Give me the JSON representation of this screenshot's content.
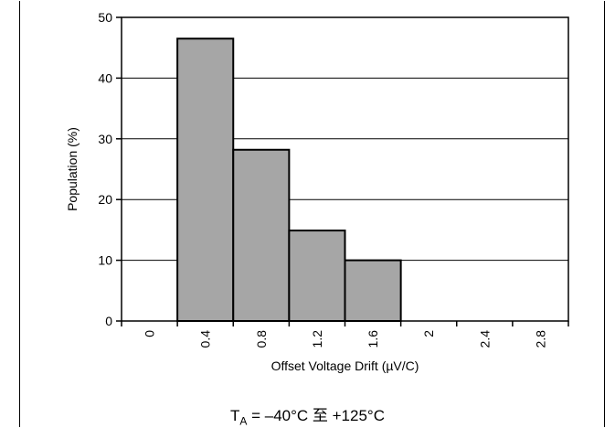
{
  "chart_data": {
    "type": "bar",
    "categories": [
      "0",
      "0.4",
      "0.8",
      "1.2",
      "1.6",
      "2",
      "2.4",
      "2.8"
    ],
    "values": [
      0,
      46.5,
      28.2,
      14.9,
      10.0,
      0,
      0,
      0
    ],
    "xlabel": "Offset Voltage Drift (µV/C)",
    "ylabel": "Population (%)",
    "ylim": [
      0,
      50
    ],
    "yticks": [
      "0",
      "10",
      "20",
      "30",
      "40",
      "50"
    ],
    "grid": true,
    "bar_color": "#a6a6a6"
  },
  "caption": {
    "symbol": "T",
    "subscript": "A",
    "text": " = –40°C 至 +125°C"
  }
}
